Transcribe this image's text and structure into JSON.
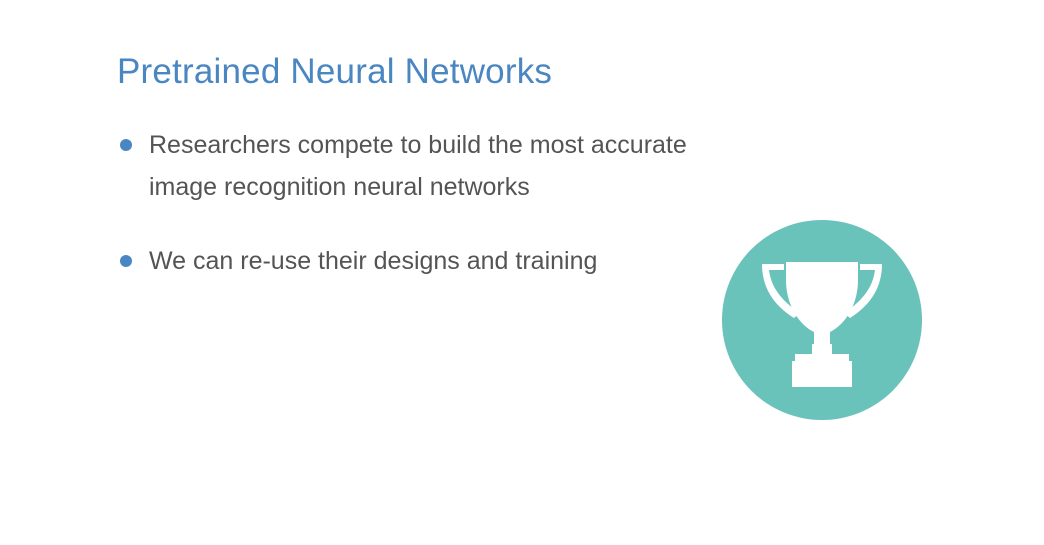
{
  "slide": {
    "title": "Pretrained Neural Networks",
    "bullets": [
      {
        "text": "Researchers compete to build the most accurate image recognition neural networks"
      },
      {
        "text": "We can re-use their designs and training"
      }
    ],
    "icon": "trophy-icon"
  },
  "colors": {
    "accent": "#4a86c1",
    "text": "#545454",
    "badge": "#6ac3bb",
    "background": "#ffffff"
  }
}
